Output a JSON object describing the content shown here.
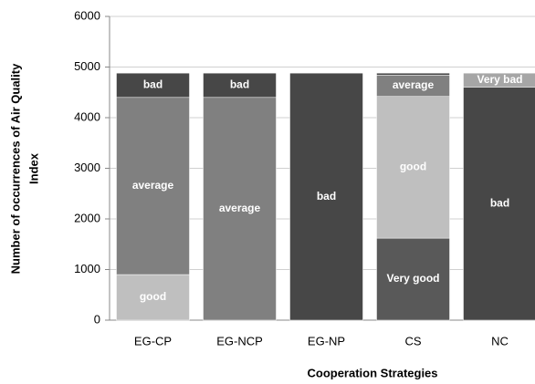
{
  "chart_data": {
    "type": "stacked_bar",
    "ylabel": [
      "Number of occurrences of Air Quality",
      "Index"
    ],
    "xlabel": "Cooperation Strategies",
    "categories": [
      "EG-CP",
      "EG-NCP",
      "EG-NP",
      "CS",
      "NC"
    ],
    "series": [
      {
        "name": "Very good",
        "color": "#595959",
        "values": [
          0,
          0,
          0,
          1620,
          0
        ]
      },
      {
        "name": "good",
        "color": "#bfbfbf",
        "values": [
          900,
          0,
          0,
          2800,
          0
        ]
      },
      {
        "name": "average",
        "color": "#808080",
        "values": [
          3500,
          4400,
          0,
          420,
          0
        ]
      },
      {
        "name": "bad",
        "color": "#474747",
        "values": [
          480,
          480,
          4880,
          40,
          4600
        ]
      },
      {
        "name": "Very bad",
        "color": "#a6a6a6",
        "values": [
          0,
          0,
          0,
          0,
          280
        ]
      }
    ],
    "ylim": [
      0,
      6000
    ],
    "yticks": [
      0,
      1000,
      2000,
      3000,
      4000,
      5000,
      6000
    ],
    "grid": true
  }
}
